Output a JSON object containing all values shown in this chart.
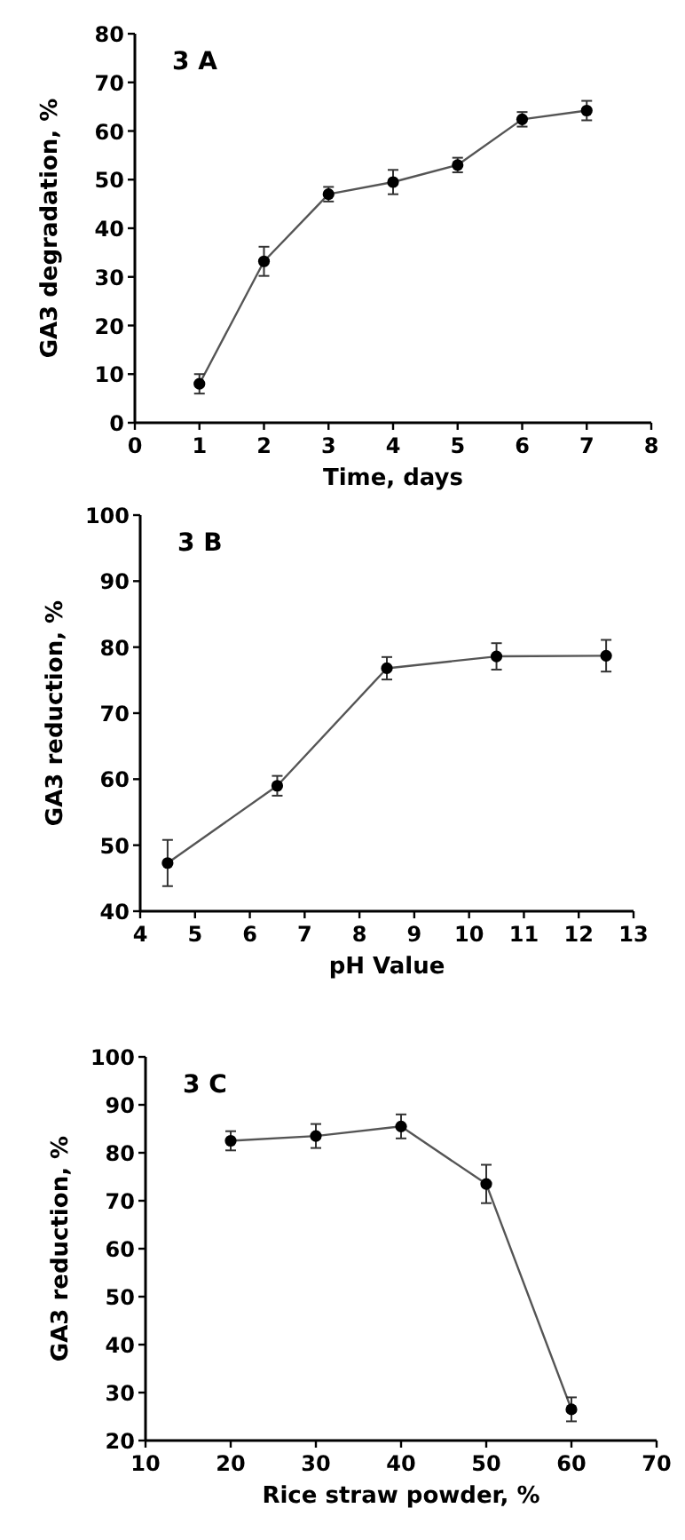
{
  "chart_data": [
    {
      "type": "line",
      "title": "3 A",
      "xlabel": "Time, days",
      "ylabel": "GA3 degradation, %",
      "x": [
        1,
        2,
        3,
        4,
        5,
        6,
        7
      ],
      "xlim": [
        0,
        8
      ],
      "xticks": [
        0,
        1,
        2,
        3,
        4,
        5,
        6,
        7,
        8
      ],
      "ylim": [
        0,
        80
      ],
      "yticks": [
        0,
        10,
        20,
        30,
        40,
        50,
        60,
        70,
        80
      ],
      "marker": "circle",
      "line_style": "solid",
      "grid": false,
      "series": [
        {
          "color": "#000000",
          "values": [
            8,
            33.2,
            47,
            49.5,
            53,
            62.4,
            64.2
          ],
          "errors": [
            2,
            3,
            1.5,
            2.5,
            1.5,
            1.5,
            2
          ]
        }
      ]
    },
    {
      "type": "line",
      "title": "3 B",
      "xlabel": "pH Value",
      "ylabel": "GA3 reduction, %",
      "x": [
        4.5,
        6.5,
        8.5,
        10.5,
        12.5
      ],
      "xlim": [
        4,
        13
      ],
      "xticks": [
        4,
        5,
        6,
        7,
        8,
        9,
        10,
        11,
        12,
        13
      ],
      "ylim": [
        40,
        100
      ],
      "yticks": [
        40,
        50,
        60,
        70,
        80,
        90,
        100
      ],
      "marker": "circle",
      "line_style": "solid",
      "grid": false,
      "series": [
        {
          "color": "#000000",
          "values": [
            47.3,
            59,
            76.8,
            78.6,
            78.7
          ],
          "errors": [
            3.5,
            1.5,
            1.7,
            2,
            2.4
          ]
        }
      ]
    },
    {
      "type": "line",
      "title": "3 C",
      "xlabel": "Rice straw powder, %",
      "ylabel": "GA3 reduction, %",
      "x": [
        20,
        30,
        40,
        50,
        60
      ],
      "xlim": [
        10,
        70
      ],
      "xticks": [
        10,
        20,
        30,
        40,
        50,
        60,
        70
      ],
      "ylim": [
        20,
        100
      ],
      "yticks": [
        20,
        30,
        40,
        50,
        60,
        70,
        80,
        90,
        100
      ],
      "marker": "circle",
      "line_style": "solid",
      "grid": false,
      "series": [
        {
          "color": "#000000",
          "values": [
            82.5,
            83.5,
            85.5,
            73.5,
            26.5
          ],
          "errors": [
            2,
            2.5,
            2.5,
            4,
            2.5
          ]
        }
      ]
    }
  ]
}
